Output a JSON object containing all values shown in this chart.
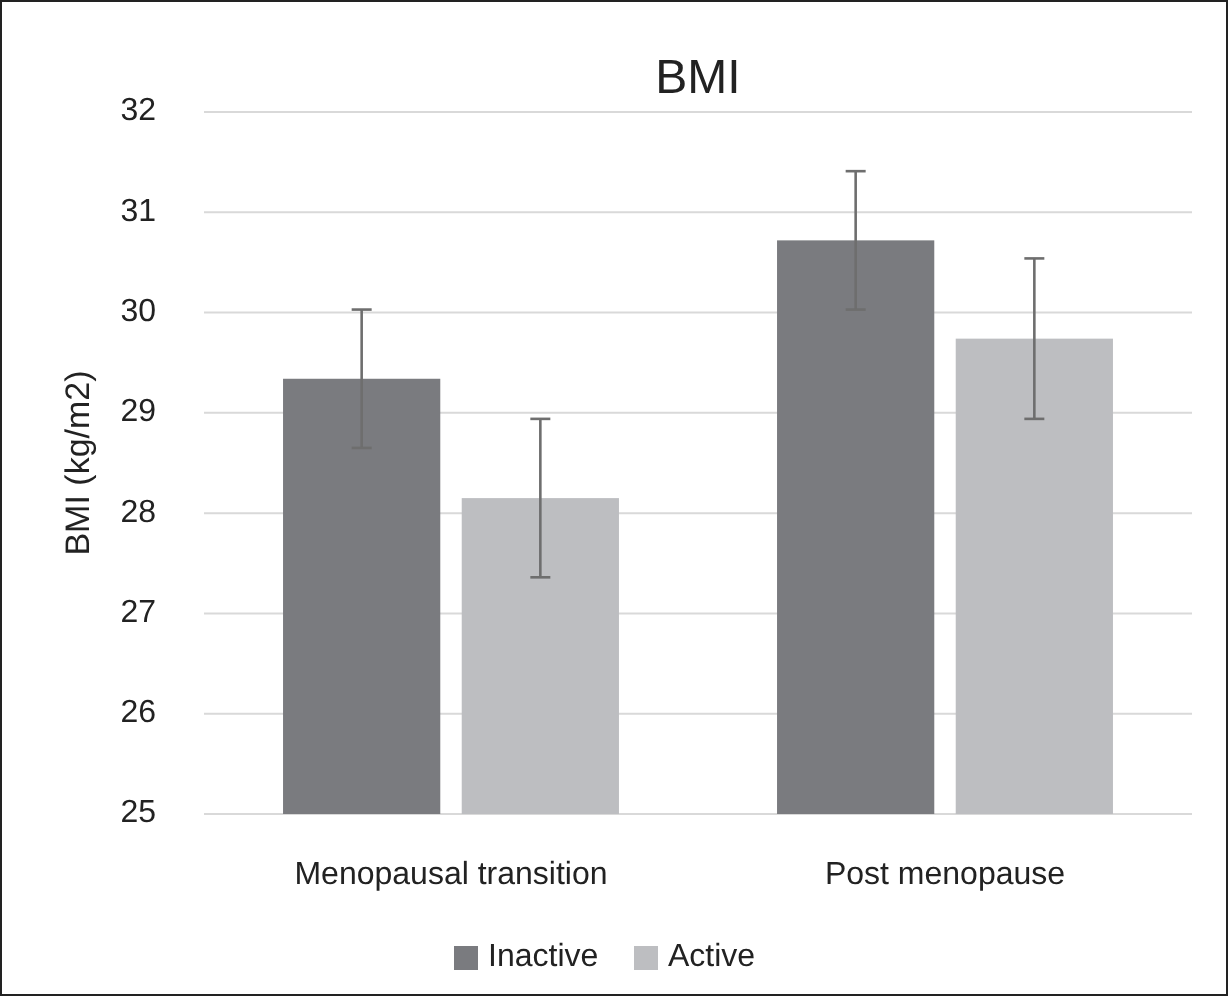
{
  "chart_data": {
    "type": "bar",
    "title": "BMI",
    "ylabel": "BMI (kg/m2)",
    "categories": [
      "Menopausal transition",
      "Post menopause"
    ],
    "series": [
      {
        "name": "Inactive",
        "color": "#7a7b7f",
        "values": [
          29.34,
          30.72
        ],
        "errors": [
          0.69,
          0.69
        ]
      },
      {
        "name": "Active",
        "color": "#bdbec1",
        "values": [
          28.15,
          29.74
        ],
        "errors": [
          0.79,
          0.8
        ]
      }
    ],
    "ylim": [
      25,
      32
    ],
    "yticks": [
      25,
      26,
      27,
      28,
      29,
      30,
      31,
      32
    ],
    "grid": "y",
    "legend": "bottom"
  }
}
